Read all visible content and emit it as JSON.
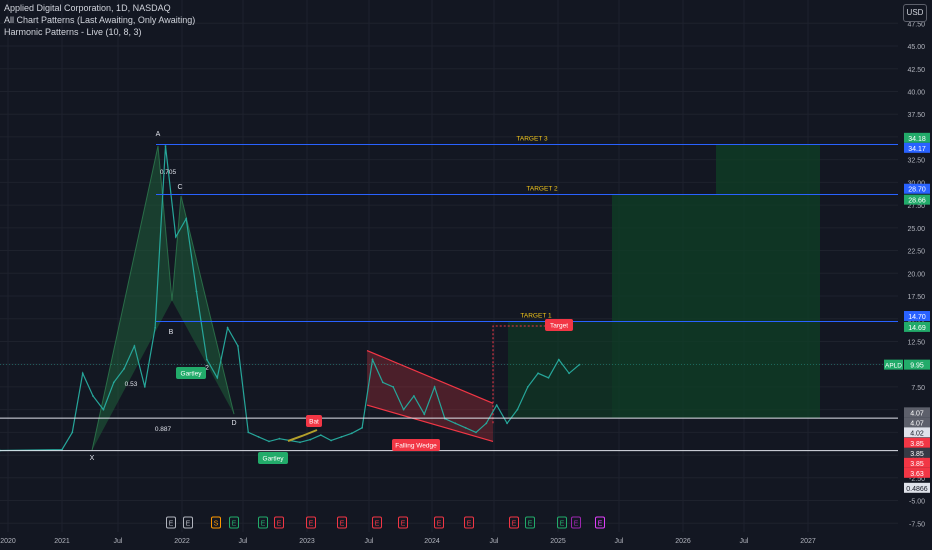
{
  "legend": {
    "symbol": "Applied Digital Corporation, 1D, NASDAQ",
    "indicator1": "All Chart Patterns (Last Awaiting, Only Awaiting)",
    "indicator2": "Harmonic Patterns - Live (10, 8, 3)"
  },
  "currency_button": "USD",
  "colors": {
    "background": "#131722",
    "grid": "#1e222d",
    "target_line": "#2962ff",
    "green_zone": "#0f3d25",
    "wedge": "#f23645",
    "harmonic": "#1f5e3a",
    "price_line": "#26a69a",
    "price_badge": "#26a69a",
    "red_badge": "#f23645",
    "blue_badge": "#2962ff"
  },
  "chart_data": {
    "type": "line",
    "ylabel": "",
    "ylim": [
      -7.5,
      50
    ],
    "y_ticks": [
      "47.50",
      "45.00",
      "42.50",
      "40.00",
      "37.50",
      "35.00",
      "32.50",
      "30.00",
      "27.50",
      "25.00",
      "22.50",
      "20.00",
      "17.50",
      "15.00",
      "12.50",
      "10.00",
      "7.50",
      "5.00",
      "2.50",
      "0.00",
      "-2.50",
      "-5.00",
      "-7.50"
    ],
    "x_ticks": [
      "2020",
      "2021",
      "Jul",
      "2022",
      "Jul",
      "2023",
      "Jul",
      "2024",
      "Jul",
      "2025",
      "Jul",
      "2026",
      "Jul",
      "2027"
    ],
    "series": [
      {
        "x": [
          "2020-01",
          "2020-07",
          "2021-01",
          "2021-02",
          "2021-03",
          "2021-04",
          "2021-05",
          "2021-06",
          "2021-07",
          "2021-08",
          "2021-09",
          "2021-10",
          "2021-11",
          "2021-12",
          "2022-01",
          "2022-02",
          "2022-03",
          "2022-04",
          "2022-05",
          "2022-06",
          "2022-07",
          "2022-08",
          "2022-09",
          "2022-10",
          "2022-11",
          "2022-12",
          "2023-01",
          "2023-02",
          "2023-03",
          "2023-04",
          "2023-05",
          "2023-06",
          "2023-07",
          "2023-08",
          "2023-09",
          "2023-10",
          "2023-11",
          "2023-12",
          "2024-01",
          "2024-02",
          "2024-03",
          "2024-04",
          "2024-05",
          "2024-06",
          "2024-07",
          "2024-08",
          "2024-09",
          "2024-10",
          "2024-11",
          "2024-12",
          "2025-01",
          "2025-02",
          "2025-03"
        ],
        "y": [
          0.5,
          0.5,
          0.6,
          2.5,
          9.0,
          6.5,
          5.0,
          8.0,
          9.5,
          12.0,
          7.5,
          14.0,
          34.0,
          24.0,
          26.0,
          18.0,
          10.5,
          8.5,
          14.0,
          12.0,
          2.5,
          2.0,
          1.5,
          1.8,
          1.6,
          1.4,
          1.7,
          2.2,
          1.6,
          2.0,
          2.4,
          3.0,
          10.5,
          8.0,
          7.5,
          5.0,
          6.5,
          4.5,
          7.5,
          4.0,
          3.5,
          3.0,
          2.5,
          3.5,
          5.5,
          3.5,
          5.0,
          7.5,
          9.0,
          8.5,
          10.5,
          9.0,
          9.95
        ]
      }
    ]
  },
  "targets": {
    "t1": "TARGET 1",
    "t2": "TARGET 2",
    "t3": "TARGET 3"
  },
  "pattern_labels": {
    "X": "X",
    "A": "A",
    "B": "B",
    "C": "C",
    "D": "D",
    "two": "2",
    "r705": "0.705",
    "r887": "0.887",
    "r53": "0.53",
    "gartley1": "Gartley",
    "gartley2": "Gartley",
    "bat": "Bat",
    "target": "Target",
    "falling_wedge": "Falling Wedge"
  },
  "price_badges": {
    "t3a": "34.18",
    "t3b": "34.17",
    "t2a": "28.70",
    "t2b": "28.66",
    "t1a": "14.70",
    "t1b": "14.69",
    "ticker": "APLD",
    "last": "9.95",
    "w1": "4.07",
    "w2": "4.07",
    "w3": "4.02",
    "r1": "3.85",
    "g1": "3.85",
    "r2": "3.85",
    "r3": "3.63",
    "w4": "0.4866"
  },
  "events": [
    "E",
    "E",
    "S",
    "E",
    "E",
    "E",
    "E",
    "E",
    "E",
    "E",
    "E",
    "E",
    "E",
    "E",
    "E",
    "E",
    "E",
    "E"
  ]
}
